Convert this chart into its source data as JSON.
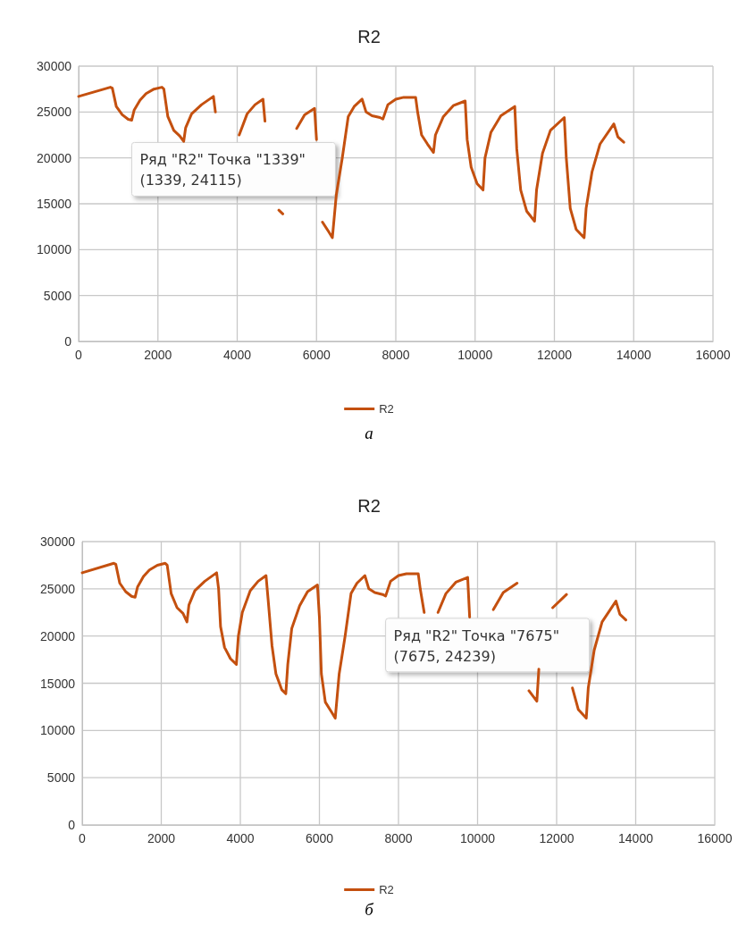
{
  "chart_data": [
    {
      "type": "line",
      "title": "R2",
      "annotations": [
        {
          "text": "Ряд \"R2\" Точка \"1339\"\n(1339, 24115)",
          "x": 1339,
          "y": 24115
        },
        "а"
      ],
      "x": [
        0,
        800,
        850,
        950,
        1100,
        1250,
        1339,
        1400,
        1550,
        1700,
        1900,
        2100,
        2150,
        2250,
        2400,
        2550,
        2650,
        2700,
        2850,
        3100,
        3400,
        3450,
        3500,
        3600,
        3750,
        3900,
        3950,
        4050,
        4250,
        4450,
        4650,
        4700,
        4800,
        4900,
        5050,
        5150,
        5200,
        5300,
        5500,
        5700,
        5950,
        6000,
        6050,
        6150,
        6300,
        6400,
        6500,
        6650,
        6800,
        6950,
        7150,
        7250,
        7400,
        7600,
        7675,
        7800,
        8000,
        8200,
        8500,
        8550,
        8650,
        8800,
        8950,
        9000,
        9200,
        9450,
        9750,
        9800,
        9900,
        10050,
        10200,
        10250,
        10400,
        10650,
        11000,
        11050,
        11150,
        11300,
        11500,
        11550,
        11700,
        11900,
        12250,
        12300,
        12400,
        12550,
        12750,
        12800,
        12950,
        13150,
        13500,
        13600,
        13750
      ],
      "series": [
        {
          "name": "R2",
          "color": "#c4500f",
          "values": [
            26700,
            27700,
            27600,
            25600,
            24700,
            24200,
            24115,
            25200,
            26300,
            27000,
            27500,
            27700,
            27500,
            24500,
            23000,
            22400,
            21800,
            23300,
            24800,
            25800,
            26700,
            25000,
            null,
            null,
            null,
            null,
            null,
            22500,
            24800,
            25800,
            26400,
            24000,
            null,
            null,
            14300,
            13900,
            null,
            null,
            23200,
            24700,
            25400,
            22000,
            null,
            13000,
            12000,
            11300,
            16000,
            20000,
            24500,
            25600,
            26400,
            25000,
            24600,
            24400,
            24239,
            25800,
            26400,
            26600,
            26600,
            25000,
            22500,
            21500,
            20600,
            22500,
            24500,
            25700,
            26200,
            22000,
            19000,
            17200,
            16500,
            20000,
            22800,
            24600,
            25600,
            21000,
            16500,
            14200,
            13100,
            16500,
            20500,
            23000,
            24400,
            20000,
            14500,
            12200,
            11300,
            14500,
            18500,
            21500,
            23700,
            22300,
            21700
          ]
        }
      ],
      "xlim": [
        0,
        16000
      ],
      "xticks": [
        0,
        2000,
        4000,
        6000,
        8000,
        10000,
        12000,
        14000,
        16000
      ],
      "ylim": [
        0,
        30000
      ],
      "yticks": [
        0,
        5000,
        10000,
        15000,
        20000,
        25000,
        30000
      ],
      "grid": true,
      "legend": "bottom",
      "marker": "none",
      "line_style": "solid"
    },
    {
      "type": "line",
      "title": "R2",
      "annotations": [
        {
          "text": "Ряд \"R2\" Точка \"7675\"\n(7675, 24239)",
          "x": 7675,
          "y": 24239
        },
        "б"
      ],
      "x": [
        0,
        800,
        850,
        950,
        1100,
        1250,
        1339,
        1400,
        1550,
        1700,
        1900,
        2100,
        2150,
        2250,
        2400,
        2550,
        2650,
        2700,
        2850,
        3100,
        3400,
        3450,
        3500,
        3600,
        3750,
        3900,
        3950,
        4050,
        4250,
        4450,
        4650,
        4700,
        4800,
        4900,
        5050,
        5150,
        5200,
        5300,
        5500,
        5700,
        5950,
        6000,
        6050,
        6150,
        6300,
        6400,
        6500,
        6650,
        6800,
        6950,
        7150,
        7250,
        7400,
        7600,
        7675,
        7800,
        8000,
        8200,
        8500,
        8550,
        8650,
        8800,
        8950,
        9000,
        9200,
        9450,
        9750,
        9800,
        9900,
        10050,
        10200,
        10250,
        10400,
        10650,
        11000,
        11050,
        11150,
        11300,
        11500,
        11550,
        11700,
        11900,
        12250,
        12300,
        12400,
        12550,
        12750,
        12800,
        12950,
        13150,
        13500,
        13600,
        13750
      ],
      "series": [
        {
          "name": "R2",
          "color": "#c4500f",
          "values": [
            26700,
            27700,
            27600,
            25600,
            24700,
            24200,
            24115,
            25200,
            26300,
            27000,
            27500,
            27700,
            27500,
            24500,
            23000,
            22400,
            21500,
            23300,
            24800,
            25800,
            26700,
            25000,
            21000,
            18800,
            17600,
            17000,
            20000,
            22500,
            24800,
            25800,
            26400,
            24000,
            19000,
            16000,
            14300,
            13900,
            17000,
            20800,
            23200,
            24700,
            25400,
            22000,
            16000,
            13000,
            12000,
            11300,
            16000,
            20000,
            24500,
            25600,
            26400,
            25000,
            24600,
            24400,
            24239,
            25800,
            26400,
            26600,
            26600,
            25000,
            22500,
            null,
            null,
            22500,
            24500,
            25700,
            26200,
            22000,
            null,
            null,
            null,
            null,
            22800,
            24600,
            25600,
            null,
            null,
            14200,
            13100,
            16500,
            null,
            23000,
            24400,
            null,
            14500,
            12200,
            11300,
            14500,
            18500,
            21500,
            23700,
            22300,
            21700
          ]
        }
      ],
      "xlim": [
        0,
        16000
      ],
      "xticks": [
        0,
        2000,
        4000,
        6000,
        8000,
        10000,
        12000,
        14000,
        16000
      ],
      "ylim": [
        0,
        30000
      ],
      "yticks": [
        0,
        5000,
        10000,
        15000,
        20000,
        25000,
        30000
      ],
      "grid": true,
      "legend": "bottom",
      "marker": "none",
      "line_style": "solid"
    }
  ]
}
